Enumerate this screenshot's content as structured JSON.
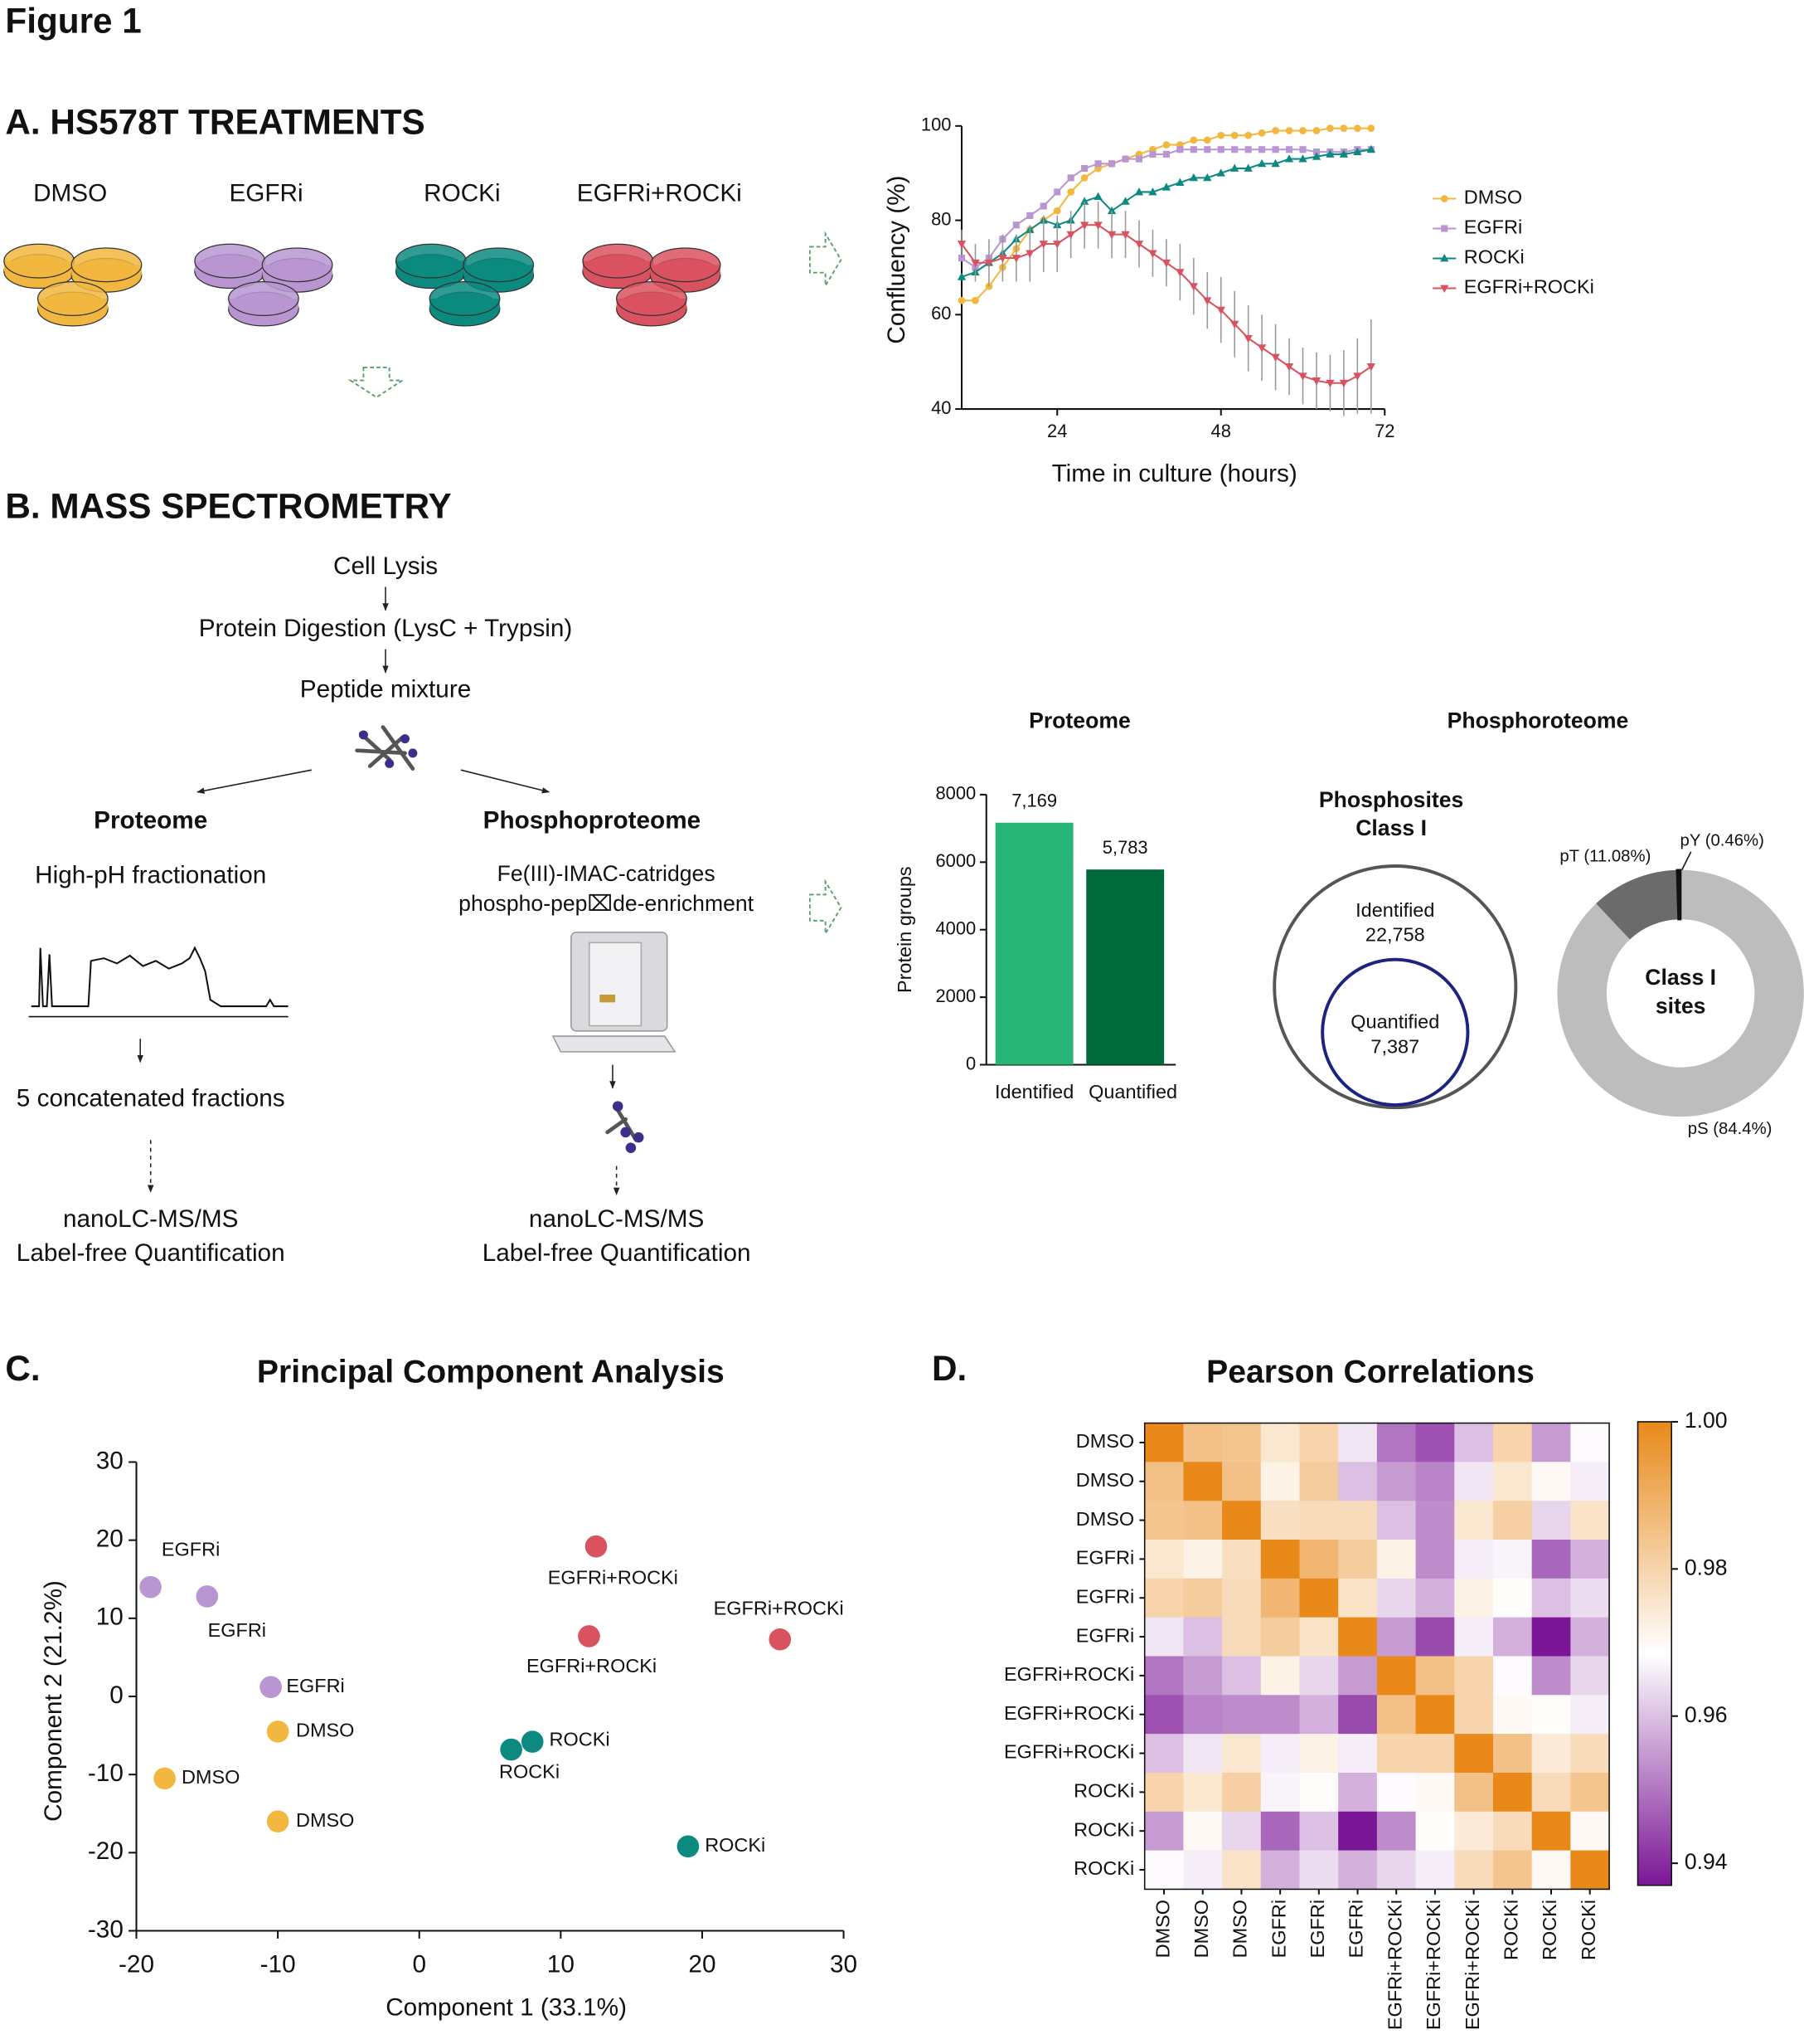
{
  "figure_title": "Figure 1",
  "panel_a": {
    "title": "A. HS578T TREATMENTS",
    "treatments": [
      {
        "label": "DMSO",
        "color": "#f2b73f"
      },
      {
        "label": "EGFRi",
        "color": "#b996d2"
      },
      {
        "label": "ROCKi",
        "color": "#0c8a80"
      },
      {
        "label": "EGFRi+ROCKi",
        "color": "#d9525f"
      }
    ]
  },
  "panel_b": {
    "title": "B. MASS SPECTROMETRY",
    "workflow": [
      "Cell Lysis",
      "Protein Digestion (LysC + Trypsin)",
      "Peptide mixture"
    ],
    "proteome": {
      "title": "Proteome",
      "steps": [
        "High-pH fractionation",
        "5 concatenated fractions",
        "nanoLC-MS/MS",
        "Label-free Quantification"
      ]
    },
    "phosphoproteome": {
      "title": "Phosphoproteome",
      "steps": [
        "Fe(III)-IMAC-catridges",
        "phospho-pep⌧de-enrichment",
        "nanoLC-MS/MS",
        "Label-free Quantification"
      ]
    },
    "phospho_title": "Phosphoroteome",
    "venn": {
      "title": [
        "Phosphosites",
        "Class I"
      ],
      "outer": [
        "Identified",
        "22,758"
      ],
      "inner": [
        "Quantified",
        "7,387"
      ]
    }
  },
  "panel_c": {
    "letter": "C."
  },
  "panel_d": {
    "letter": "D."
  },
  "chart_data": [
    {
      "type": "line",
      "xlabel": "Time in culture (hours)",
      "ylabel": "Confluency (%)",
      "x": [
        10,
        12,
        14,
        16,
        18,
        20,
        22,
        24,
        26,
        28,
        30,
        32,
        34,
        36,
        38,
        40,
        42,
        44,
        46,
        48,
        50,
        52,
        54,
        56,
        58,
        60,
        62,
        64,
        66,
        68,
        70
      ],
      "xlim": [
        10,
        72
      ],
      "xticks": [
        24,
        48,
        72
      ],
      "ylim": [
        40,
        100
      ],
      "yticks": [
        40,
        60,
        80,
        100
      ],
      "series": [
        {
          "name": "DMSO",
          "color": "#f2b73f",
          "values": [
            63,
            63,
            66,
            70,
            74,
            78,
            80,
            82,
            86,
            89,
            91,
            92,
            93,
            94,
            95,
            96,
            96,
            97,
            97,
            98,
            98,
            98,
            98.5,
            99,
            99,
            99,
            99,
            99.5,
            99.5,
            99.5,
            99.5
          ]
        },
        {
          "name": "EGFRi",
          "color": "#b996d2",
          "values": [
            72,
            70,
            72,
            76,
            79,
            81,
            83,
            86,
            89,
            91,
            92,
            92,
            93,
            93,
            94,
            94,
            95,
            95,
            95,
            95,
            95,
            95,
            95,
            95,
            95,
            95,
            94.5,
            94.5,
            94.5,
            95,
            95
          ]
        },
        {
          "name": "ROCKi",
          "color": "#0c8a80",
          "values": [
            68,
            69,
            71,
            73,
            76,
            78,
            80,
            79,
            80,
            84,
            85,
            82,
            84,
            86,
            86,
            87,
            88,
            89,
            89,
            90,
            91,
            91,
            92,
            92,
            93,
            93,
            93.5,
            94,
            94,
            94.5,
            95
          ]
        },
        {
          "name": "EGFRi+ROCKi",
          "color": "#d9525f",
          "values": [
            75,
            71,
            71,
            72,
            72,
            73,
            75,
            75,
            77,
            79,
            79,
            77,
            77,
            75,
            73,
            71,
            69,
            66,
            63,
            61,
            58,
            55,
            53,
            51,
            49,
            47,
            46,
            45.5,
            45.5,
            47,
            49
          ],
          "errors": [
            3,
            4,
            5,
            5,
            5,
            6,
            6,
            6,
            5,
            5,
            5,
            5,
            5,
            5,
            5,
            5,
            6,
            6,
            6,
            7,
            7,
            7,
            7,
            7,
            6,
            6,
            6,
            6,
            7,
            8,
            10
          ]
        }
      ]
    },
    {
      "type": "bar",
      "title": "Proteome",
      "ylabel": "Protein groups",
      "categories": [
        "Identified",
        "Quantified"
      ],
      "values": [
        7169,
        5783
      ],
      "value_labels": [
        "7,169",
        "5,783"
      ],
      "colors": [
        "#27b577",
        "#006a3b"
      ],
      "ylim": [
        0,
        8000
      ],
      "yticks": [
        0,
        2000,
        4000,
        6000,
        8000
      ]
    },
    {
      "type": "donut",
      "values": [
        84.4,
        11.08,
        0.46
      ],
      "value_labels": [
        "pS (84.4%)",
        "pT (11.08%)",
        "pY (0.46%)"
      ],
      "colors": [
        "#bdbdbd",
        "#6b6b6b",
        "#111111"
      ],
      "center_label": [
        "Class I",
        "sites"
      ]
    },
    {
      "type": "scatter",
      "title": "Principal Component Analysis",
      "xlabel": "Component 1 (33.1%)",
      "ylabel": "Component 2 (21.2%)",
      "xlim": [
        -20,
        30
      ],
      "xticks": [
        -20,
        -10,
        0,
        10,
        20,
        30
      ],
      "ylim": [
        -30,
        30
      ],
      "yticks": [
        -30,
        -20,
        -10,
        0,
        10,
        20,
        30
      ],
      "series": [
        {
          "name": "EGFRi",
          "color": "#b996d2",
          "x": [
            -19,
            -15,
            -10.5
          ],
          "values": [
            14,
            12.8,
            1.2
          ]
        },
        {
          "name": "DMSO",
          "color": "#f2b73f",
          "x": [
            -10,
            -18,
            -10
          ],
          "values": [
            -4.5,
            -10.5,
            -16
          ]
        },
        {
          "name": "EGFRi+ROCKi",
          "color": "#d9525f",
          "x": [
            12.5,
            12,
            25.5
          ],
          "values": [
            19.2,
            7.7,
            7.3
          ]
        },
        {
          "name": "ROCKi",
          "color": "#0c8a80",
          "x": [
            6.5,
            8,
            19
          ],
          "values": [
            -6.8,
            -5.8,
            -19.2
          ]
        }
      ]
    },
    {
      "type": "heatmap",
      "title": "Pearson Correlations",
      "row_labels": [
        "DMSO",
        "DMSO",
        "DMSO",
        "EGFRi",
        "EGFRi",
        "EGFRi",
        "EGFRi+ROCKi",
        "EGFRi+ROCKi",
        "EGFRi+ROCKi",
        "ROCKi",
        "ROCKi",
        "ROCKi"
      ],
      "col_labels": [
        "DMSO",
        "DMSO",
        "DMSO",
        "EGFRi",
        "EGFRi",
        "EGFRi",
        "EGFRi+ROCKi",
        "EGFRi+ROCKi",
        "EGFRi+ROCKi",
        "ROCKi",
        "ROCKi",
        "ROCKi"
      ],
      "values": [
        [
          1,
          0.985,
          0.984,
          0.975,
          0.98,
          0.965,
          0.95,
          0.945,
          0.96,
          0.98,
          0.955,
          0.968
        ],
        [
          0.985,
          1,
          0.985,
          0.972,
          0.982,
          0.96,
          0.955,
          0.952,
          0.965,
          0.975,
          0.97,
          0.966
        ],
        [
          0.984,
          0.985,
          1,
          0.977,
          0.978,
          0.978,
          0.96,
          0.953,
          0.975,
          0.981,
          0.963,
          0.976
        ],
        [
          0.975,
          0.972,
          0.977,
          1,
          0.988,
          0.982,
          0.972,
          0.953,
          0.966,
          0.967,
          0.948,
          0.958
        ],
        [
          0.98,
          0.982,
          0.978,
          0.988,
          1,
          0.976,
          0.963,
          0.958,
          0.972,
          0.969,
          0.96,
          0.964
        ],
        [
          0.965,
          0.96,
          0.978,
          0.982,
          0.976,
          1,
          0.955,
          0.944,
          0.966,
          0.958,
          0.937,
          0.958
        ],
        [
          0.95,
          0.955,
          0.96,
          0.972,
          0.963,
          0.955,
          1,
          0.985,
          0.98,
          0.968,
          0.953,
          0.963
        ],
        [
          0.945,
          0.952,
          0.953,
          0.953,
          0.958,
          0.944,
          0.985,
          1,
          0.98,
          0.97,
          0.969,
          0.966
        ],
        [
          0.96,
          0.965,
          0.975,
          0.966,
          0.972,
          0.966,
          0.98,
          0.98,
          1,
          0.985,
          0.974,
          0.978
        ],
        [
          0.98,
          0.975,
          0.981,
          0.967,
          0.969,
          0.958,
          0.968,
          0.97,
          0.985,
          1,
          0.978,
          0.984
        ],
        [
          0.955,
          0.97,
          0.963,
          0.948,
          0.96,
          0.937,
          0.953,
          0.969,
          0.974,
          0.978,
          1,
          0.97
        ],
        [
          0.968,
          0.966,
          0.976,
          0.958,
          0.964,
          0.958,
          0.963,
          0.966,
          0.978,
          0.984,
          0.97,
          1
        ]
      ],
      "colors": [
        "#7b1696",
        "#ffffff",
        "#e8891a"
      ],
      "zlim": [
        0.937,
        1
      ],
      "zticks": [
        0.94,
        0.96,
        0.98,
        {
          "value": 1,
          "label": "1.00"
        }
      ]
    }
  ]
}
